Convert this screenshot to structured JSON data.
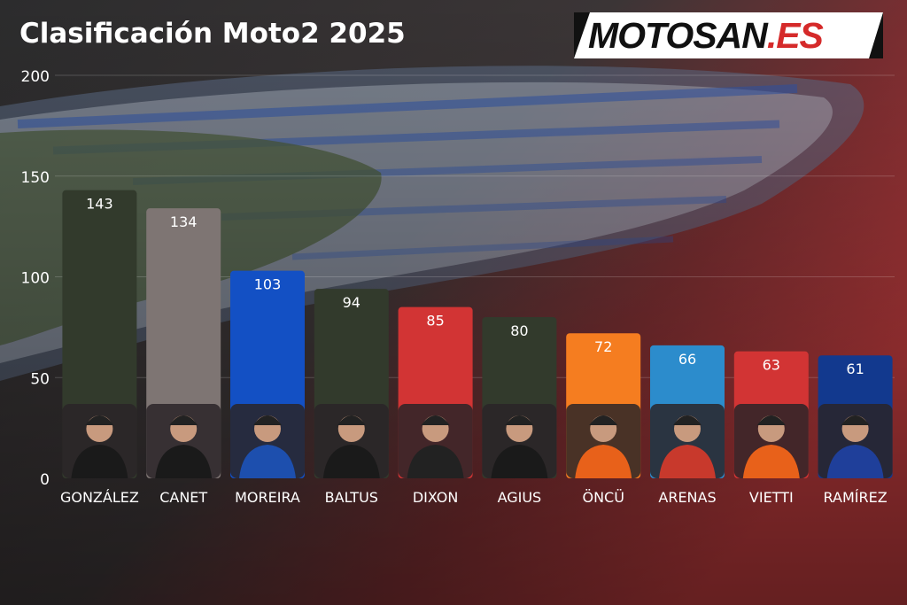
{
  "header": {
    "title": "Clasificación Moto2 2025"
  },
  "brand": {
    "logo_main": "MOTOSAN",
    "logo_tld": ".ES",
    "logo_color": "#d52a2a"
  },
  "chart_data": {
    "type": "bar",
    "title": "Clasificación Moto2 2025",
    "xlabel": "",
    "ylabel": "",
    "ylim": [
      0,
      200
    ],
    "yticks": [
      0,
      50,
      100,
      150,
      200
    ],
    "grid": true,
    "categories": [
      "GONZÁLEZ",
      "CANET",
      "MOREIRA",
      "BALTUS",
      "DIXON",
      "AGIUS",
      "ÖNCÜ",
      "ARENAS",
      "VIETTI",
      "RAMÍREZ"
    ],
    "values": [
      143,
      134,
      103,
      94,
      85,
      80,
      72,
      66,
      63,
      61
    ],
    "colors": [
      "#323a2c",
      "#7e7573",
      "#1350c4",
      "#323a2c",
      "#d23434",
      "#323a2c",
      "#f57d20",
      "#2c8ccc",
      "#d23434",
      "#12398e"
    ],
    "rider_kit_colors": [
      "#1a1a1a",
      "#1a1a1a",
      "#1d4fae",
      "#1a1a1a",
      "#222222",
      "#1a1a1a",
      "#e8611a",
      "#c8392c",
      "#e8611a",
      "#1f3f9a"
    ]
  }
}
